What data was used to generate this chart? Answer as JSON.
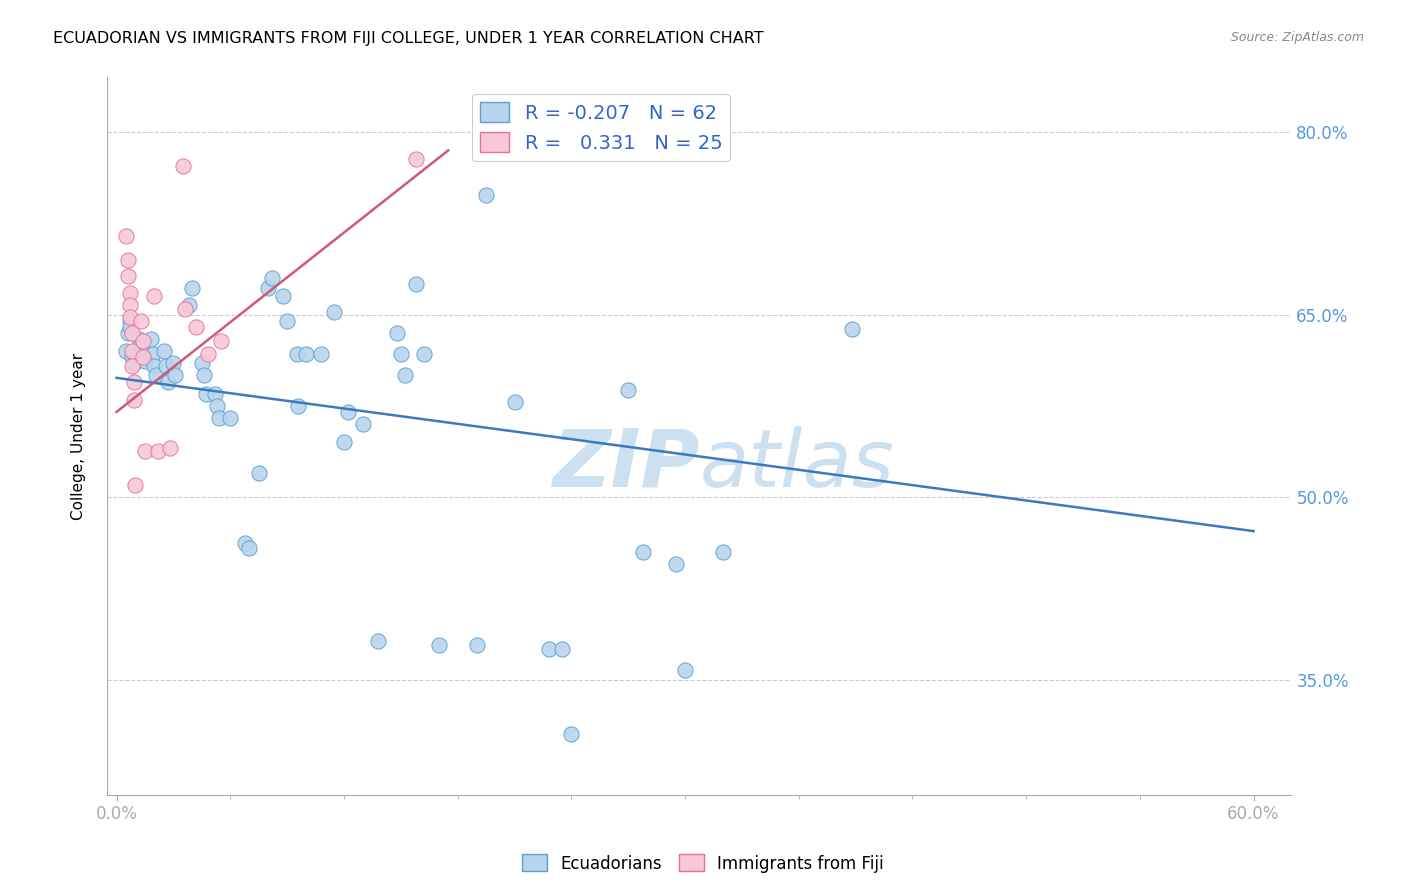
{
  "title": "ECUADORIAN VS IMMIGRANTS FROM FIJI COLLEGE, UNDER 1 YEAR CORRELATION CHART",
  "source": "Source: ZipAtlas.com",
  "ylabel": "College, Under 1 year",
  "xlim": [
    -0.005,
    0.62
  ],
  "ylim": [
    0.255,
    0.845
  ],
  "yticks": [
    0.35,
    0.5,
    0.65,
    0.8
  ],
  "ytick_labels": [
    "35.0%",
    "50.0%",
    "65.0%",
    "80.0%"
  ],
  "xtick_positions": [
    0.0,
    0.6
  ],
  "xtick_labels": [
    "0.0%",
    "60.0%"
  ],
  "blue_color": "#b8d4ec",
  "blue_edge": "#5a9fd4",
  "pink_color": "#f8c8d8",
  "pink_edge": "#e87090",
  "trendline_blue": "#3a7abf",
  "trendline_pink": "#d05878",
  "watermark_color": "#cce0f0",
  "axis_color": "#aaaaaa",
  "grid_color": "#cccccc",
  "tick_label_color": "#5599dd",
  "legend_r_blue": "-0.207",
  "legend_n_blue": "62",
  "legend_r_pink": "0.331",
  "legend_n_pink": "25",
  "blue_x": [
    0.005,
    0.006,
    0.007,
    0.007,
    0.008,
    0.009,
    0.012,
    0.013,
    0.014,
    0.015,
    0.018,
    0.019,
    0.02,
    0.021,
    0.025,
    0.026,
    0.027,
    0.03,
    0.031,
    0.038,
    0.04,
    0.045,
    0.046,
    0.047,
    0.052,
    0.053,
    0.054,
    0.06,
    0.068,
    0.07,
    0.075,
    0.08,
    0.082,
    0.088,
    0.09,
    0.095,
    0.096,
    0.1,
    0.108,
    0.115,
    0.12,
    0.122,
    0.13,
    0.138,
    0.148,
    0.15,
    0.152,
    0.158,
    0.162,
    0.17,
    0.19,
    0.195,
    0.21,
    0.228,
    0.235,
    0.24,
    0.27,
    0.278,
    0.295,
    0.3,
    0.32,
    0.388
  ],
  "blue_y": [
    0.62,
    0.635,
    0.645,
    0.64,
    0.615,
    0.61,
    0.63,
    0.625,
    0.618,
    0.612,
    0.63,
    0.618,
    0.608,
    0.6,
    0.62,
    0.608,
    0.595,
    0.61,
    0.6,
    0.658,
    0.672,
    0.61,
    0.6,
    0.585,
    0.585,
    0.575,
    0.565,
    0.565,
    0.462,
    0.458,
    0.52,
    0.672,
    0.68,
    0.665,
    0.645,
    0.618,
    0.575,
    0.618,
    0.618,
    0.652,
    0.545,
    0.57,
    0.56,
    0.382,
    0.635,
    0.618,
    0.6,
    0.675,
    0.618,
    0.378,
    0.378,
    0.748,
    0.578,
    0.375,
    0.375,
    0.305,
    0.588,
    0.455,
    0.445,
    0.358,
    0.455,
    0.638
  ],
  "pink_x": [
    0.005,
    0.006,
    0.006,
    0.007,
    0.007,
    0.007,
    0.008,
    0.008,
    0.008,
    0.009,
    0.009,
    0.01,
    0.013,
    0.014,
    0.014,
    0.015,
    0.02,
    0.022,
    0.028,
    0.035,
    0.036,
    0.042,
    0.048,
    0.055,
    0.158
  ],
  "pink_y": [
    0.715,
    0.695,
    0.682,
    0.668,
    0.658,
    0.648,
    0.635,
    0.62,
    0.608,
    0.595,
    0.58,
    0.51,
    0.645,
    0.628,
    0.615,
    0.538,
    0.665,
    0.538,
    0.54,
    0.772,
    0.655,
    0.64,
    0.618,
    0.628,
    0.778
  ],
  "blue_trend_x": [
    0.0,
    0.6
  ],
  "blue_trend_y": [
    0.598,
    0.472
  ],
  "pink_trend_x": [
    0.0,
    0.175
  ],
  "pink_trend_y": [
    0.57,
    0.785
  ]
}
